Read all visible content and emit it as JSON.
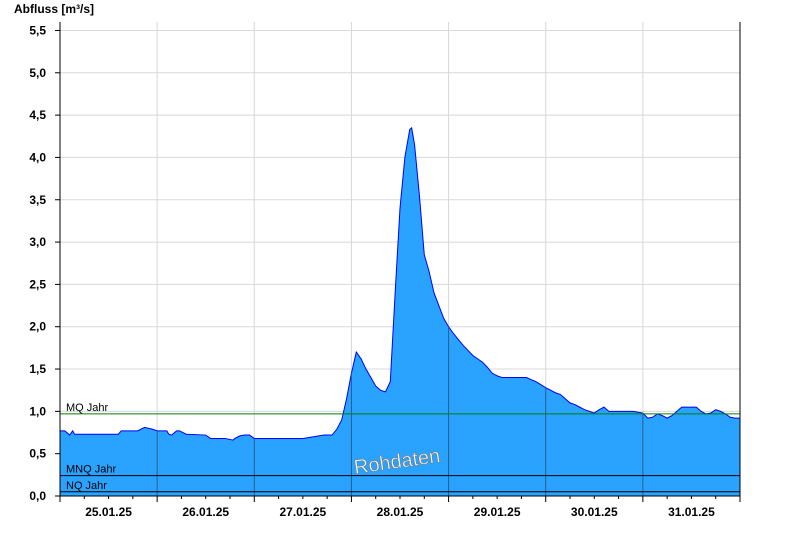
{
  "chart_data": {
    "type": "area",
    "title": "",
    "ylabel": "Abfluss [m³/s]",
    "xlabel": "",
    "ylim": [
      0,
      5.6
    ],
    "y_ticks": [
      "0,0",
      "0,5",
      "1,0",
      "1,5",
      "2,0",
      "2,5",
      "3,0",
      "3,5",
      "4,0",
      "4,5",
      "5,0",
      "5,5"
    ],
    "x_ticks": [
      "25.01.25",
      "26.01.25",
      "27.01.25",
      "28.01.25",
      "29.01.25",
      "30.01.25",
      "31.01.25"
    ],
    "x_range_days": [
      0,
      7
    ],
    "grid": true,
    "watermark": "Rohdaten",
    "reference_lines": [
      {
        "label": "MQ Jahr",
        "value": 0.97,
        "color": "#008000"
      },
      {
        "label": "MNQ Jahr",
        "value": 0.24,
        "color": "#000000"
      },
      {
        "label": "NQ Jahr",
        "value": 0.05,
        "color": "#000000"
      }
    ],
    "series": [
      {
        "fill": "#29a3ff",
        "line": "#0000ff",
        "x": [
          0.0,
          0.05,
          0.1,
          0.13,
          0.15,
          0.2,
          0.3,
          0.45,
          0.6,
          0.63,
          0.8,
          0.85,
          0.87,
          0.95,
          1.0,
          1.1,
          1.12,
          1.15,
          1.2,
          1.23,
          1.3,
          1.5,
          1.55,
          1.7,
          1.78,
          1.8,
          1.85,
          1.9,
          1.95,
          2.0,
          2.1,
          2.5,
          2.72,
          2.8,
          2.85,
          2.9,
          2.95,
          3.0,
          3.05,
          3.1,
          3.15,
          3.2,
          3.25,
          3.3,
          3.35,
          3.4,
          3.45,
          3.5,
          3.55,
          3.6,
          3.62,
          3.65,
          3.7,
          3.75,
          3.8,
          3.85,
          3.9,
          3.95,
          4.0,
          4.05,
          4.1,
          4.15,
          4.2,
          4.25,
          4.3,
          4.35,
          4.4,
          4.45,
          4.5,
          4.55,
          4.6,
          4.65,
          4.7,
          4.75,
          4.8,
          4.9,
          5.0,
          5.1,
          5.15,
          5.2,
          5.25,
          5.3,
          5.35,
          5.4,
          5.45,
          5.5,
          5.55,
          5.6,
          5.65,
          5.75,
          5.85,
          5.9,
          6.0,
          6.05,
          6.1,
          6.15,
          6.2,
          6.25,
          6.3,
          6.35,
          6.4,
          6.45,
          6.5,
          6.55,
          6.6,
          6.65,
          6.7,
          6.75,
          6.8,
          6.85,
          6.9,
          6.95,
          7.0
        ],
        "y": [
          0.77,
          0.77,
          0.72,
          0.77,
          0.73,
          0.73,
          0.73,
          0.73,
          0.73,
          0.77,
          0.77,
          0.8,
          0.81,
          0.79,
          0.77,
          0.77,
          0.73,
          0.72,
          0.77,
          0.77,
          0.73,
          0.72,
          0.68,
          0.68,
          0.66,
          0.68,
          0.71,
          0.72,
          0.72,
          0.68,
          0.68,
          0.68,
          0.72,
          0.72,
          0.79,
          0.9,
          1.15,
          1.45,
          1.7,
          1.62,
          1.5,
          1.4,
          1.3,
          1.25,
          1.23,
          1.35,
          2.4,
          3.4,
          4.0,
          4.33,
          4.35,
          4.15,
          3.55,
          2.85,
          2.65,
          2.4,
          2.25,
          2.1,
          2.0,
          1.92,
          1.85,
          1.78,
          1.72,
          1.66,
          1.62,
          1.58,
          1.52,
          1.45,
          1.42,
          1.4,
          1.4,
          1.4,
          1.4,
          1.4,
          1.4,
          1.35,
          1.28,
          1.22,
          1.2,
          1.15,
          1.1,
          1.08,
          1.05,
          1.02,
          1.0,
          0.98,
          1.02,
          1.05,
          1.0,
          1.0,
          1.0,
          1.0,
          0.98,
          0.92,
          0.93,
          0.97,
          0.95,
          0.92,
          0.95,
          1.0,
          1.05,
          1.05,
          1.05,
          1.05,
          1.0,
          0.97,
          0.98,
          1.02,
          1.0,
          0.97,
          0.93,
          0.92,
          0.92
        ]
      }
    ]
  }
}
